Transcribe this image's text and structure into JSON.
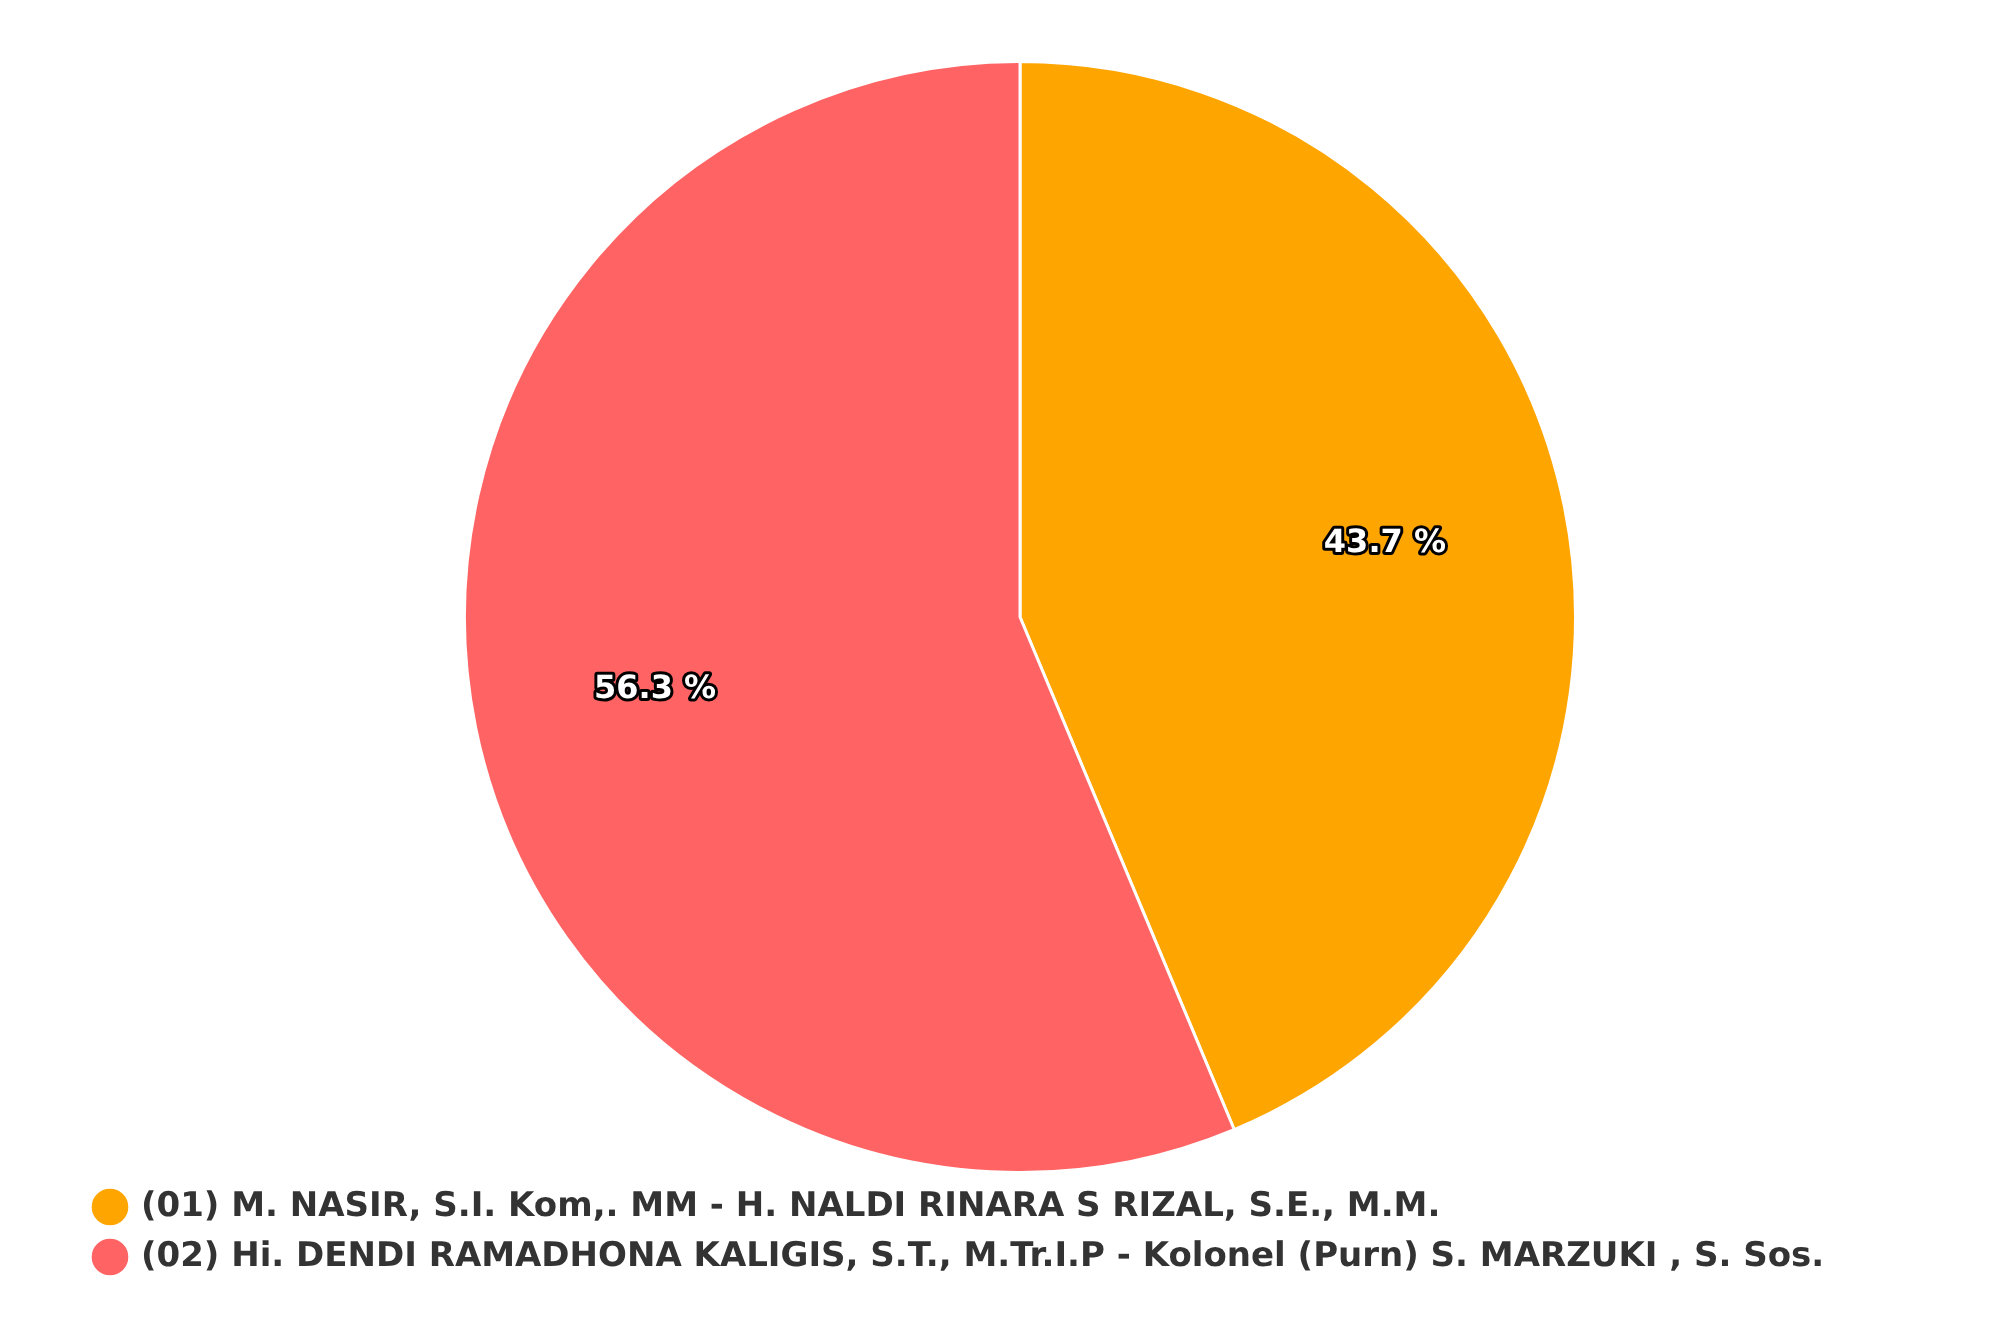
{
  "chart_data": {
    "type": "pie",
    "categories": [
      "(01) M. NASIR, S.I. Kom,. MM - H. NALDI RINARA S RIZAL, S.E., M.M.",
      "(02) Hi. DENDI RAMADHONA KALIGIS, S.T., M.Tr.I.P - Kolonel (Purn) S. MARZUKI , S. Sos."
    ],
    "values": [
      43.7,
      56.3
    ],
    "colors": [
      "#ffa500",
      "#ff6363"
    ],
    "value_labels": [
      "43.7 %",
      "56.3 %"
    ],
    "legend": "bottom left"
  }
}
